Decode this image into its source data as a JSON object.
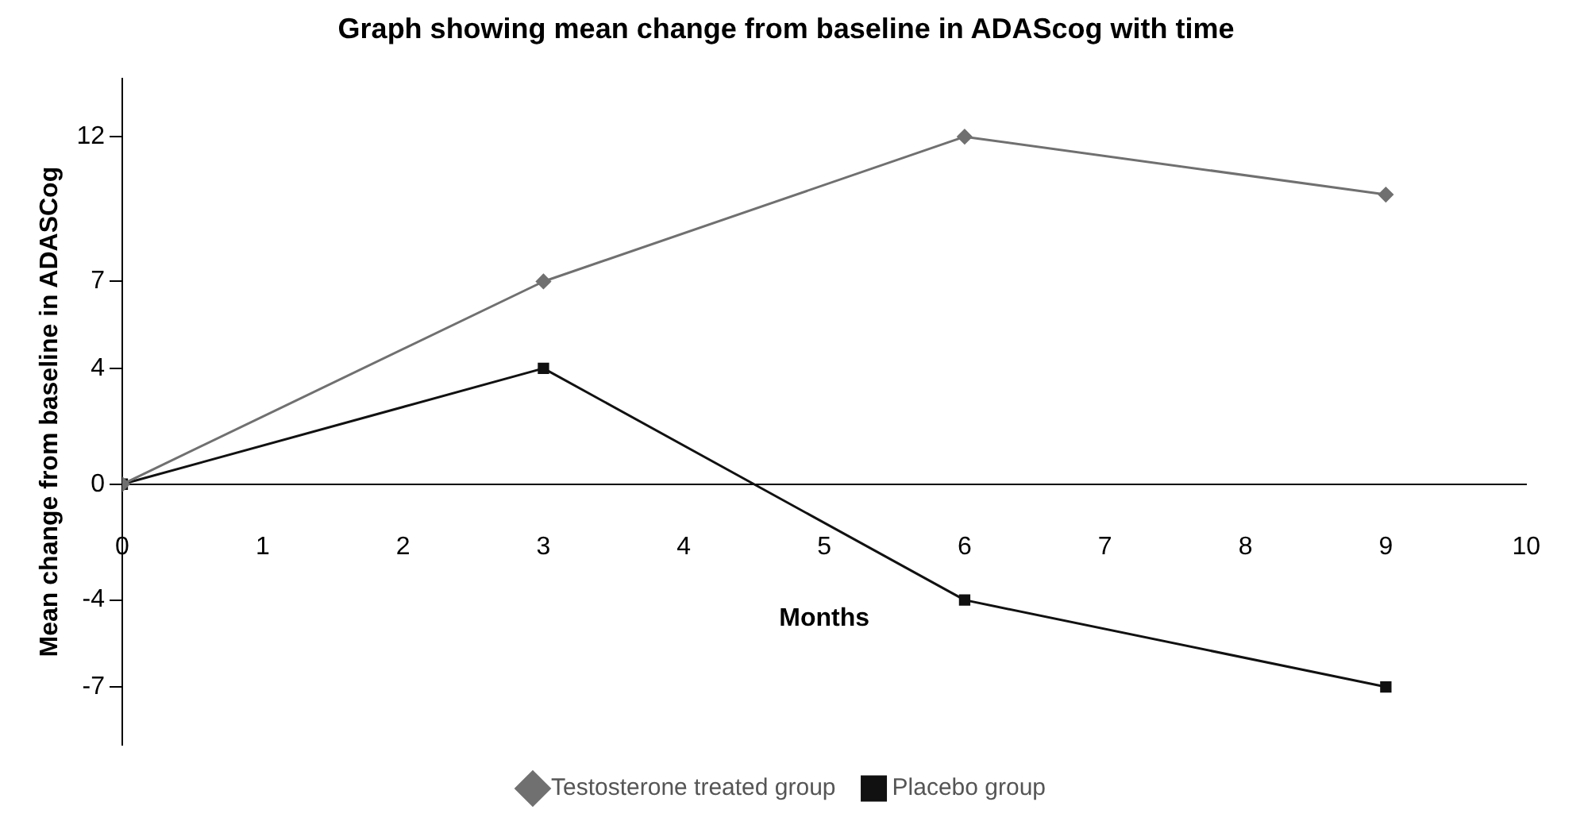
{
  "chart_data": {
    "type": "line",
    "title": "Graph showing mean change from baseline in ADAScog with time",
    "xlabel": "Months",
    "ylabel": "Mean change from baseline in ADASCog",
    "xlim": [
      0,
      10
    ],
    "xticks": [
      0,
      1,
      2,
      3,
      4,
      5,
      6,
      7,
      8,
      9,
      10
    ],
    "ylim": [
      -9,
      14
    ],
    "yticks": [
      12,
      7,
      4,
      0,
      -4,
      -7
    ],
    "grid": false,
    "legend": "bottom",
    "line_style": "solid",
    "series": [
      {
        "name": "Testosterone treated group",
        "color": "#707070",
        "marker": "diamond",
        "x": [
          0,
          3,
          6,
          9
        ],
        "values": [
          0,
          7,
          12,
          10
        ]
      },
      {
        "name": "Placebo group",
        "color": "#111111",
        "marker": "square",
        "x": [
          0,
          3,
          6,
          9
        ],
        "values": [
          0,
          4,
          -4,
          -7
        ]
      }
    ]
  }
}
